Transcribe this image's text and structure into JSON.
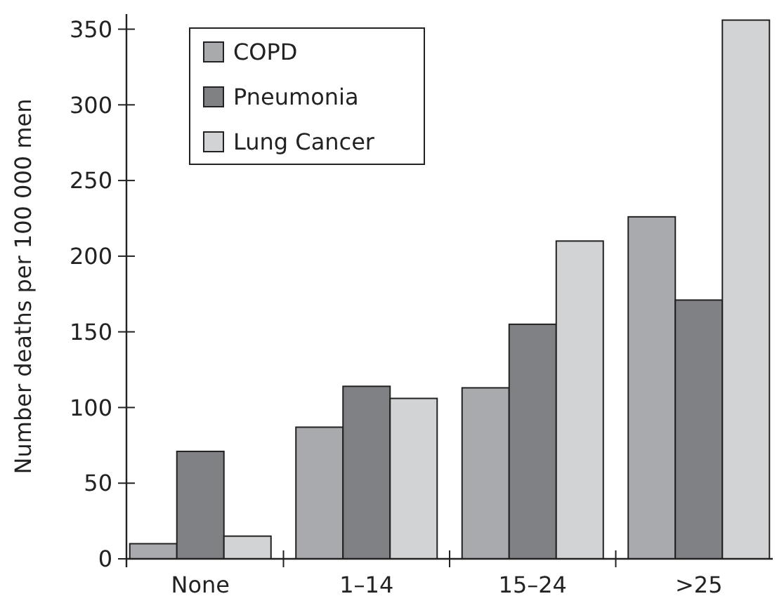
{
  "chart_data": {
    "type": "bar",
    "ylabel": "Number deaths per 100 000 men",
    "categories": [
      "None",
      "1–14",
      "15–24",
      ">25"
    ],
    "series": [
      {
        "name": "COPD",
        "color": "#a9aaad",
        "values": [
          10,
          87,
          113,
          226
        ]
      },
      {
        "name": "Pneumonia",
        "color": "#808185",
        "values": [
          71,
          114,
          155,
          171
        ]
      },
      {
        "name": "Lung Cancer",
        "color": "#d2d3d5",
        "values": [
          15,
          106,
          210,
          356
        ]
      }
    ],
    "ylim": [
      0,
      360
    ],
    "yticks": [
      0,
      50,
      100,
      150,
      200,
      250,
      300,
      350
    ],
    "grid": false,
    "legend": "top left"
  }
}
